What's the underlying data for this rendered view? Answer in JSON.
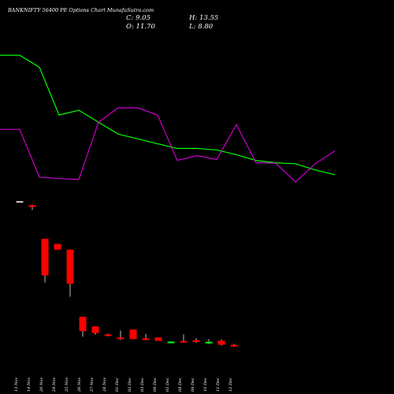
{
  "chart_data": {
    "type": "candlestick",
    "title": "BANKNIFTY 56400  PE Options  Chart MunafaSutra.com",
    "ohlc": {
      "c_label": "C: 9.05",
      "o_label": "O: 11.70",
      "h_label": "H: 13.55",
      "l_label": "L: 8.80"
    },
    "x": [
      "13 Nov",
      "14 Nov",
      "20 Nov",
      "24 Nov",
      "25 Nov",
      "26 Nov",
      "27 Nov",
      "28 Nov",
      "01 Dec",
      "02 Dec",
      "03 Dec",
      "04 Dec",
      "05 Dec",
      "08 Dec",
      "09 Dec",
      "10 Dec",
      "11 Dec",
      "12 Dec"
    ],
    "candles": [
      {
        "o": 261.0,
        "h": 262.0,
        "l": 260.0,
        "c": 261.0,
        "color": "#cccccc"
      },
      {
        "o": 237.0,
        "h": 241.0,
        "l": 212.0,
        "c": 227.0,
        "color": "#ff0000"
      },
      {
        "o": 108.0,
        "h": 108.0,
        "l": 39.0,
        "c": 46.0,
        "color": "#ff0000"
      },
      {
        "o": 96.0,
        "h": 96.0,
        "l": 84.0,
        "c": 84.0,
        "color": "#ff0000"
      },
      {
        "o": 84.0,
        "h": 84.0,
        "l": 28.0,
        "c": 38.0,
        "color": "#ff0000"
      },
      {
        "o": 17.5,
        "h": 17.5,
        "l": 11.0,
        "c": 12.5,
        "color": "#ff0000"
      },
      {
        "o": 14.0,
        "h": 14.0,
        "l": 11.5,
        "c": 12.0,
        "color": "#ff0000"
      },
      {
        "o": 11.6,
        "h": 11.8,
        "l": 11.1,
        "c": 11.3,
        "color": "#ff0000"
      },
      {
        "o": 10.8,
        "h": 12.7,
        "l": 10.2,
        "c": 10.5,
        "color": "#ff0000"
      },
      {
        "o": 13.0,
        "h": 13.0,
        "l": 10.4,
        "c": 10.4,
        "color": "#ff0000"
      },
      {
        "o": 10.6,
        "h": 11.7,
        "l": 10.1,
        "c": 10.2,
        "color": "#ff0000"
      },
      {
        "o": 10.8,
        "h": 10.8,
        "l": 10.0,
        "c": 10.0,
        "color": "#ff0000"
      },
      {
        "o": 9.8,
        "h": 9.9,
        "l": 9.7,
        "c": 9.8,
        "color": "#00ff00"
      },
      {
        "o": 9.9,
        "h": 11.6,
        "l": 9.6,
        "c": 9.95,
        "color": "#ff0000"
      },
      {
        "o": 10.1,
        "h": 10.6,
        "l": 9.5,
        "c": 9.7,
        "color": "#ff0000"
      },
      {
        "o": 9.65,
        "h": 10.4,
        "l": 9.25,
        "c": 9.75,
        "color": "#00ff00"
      },
      {
        "o": 10.0,
        "h": 10.3,
        "l": 8.95,
        "c": 9.1,
        "color": "#ff0000"
      },
      {
        "o": 9.1,
        "h": 9.3,
        "l": 8.7,
        "c": 8.8,
        "color": "#ff0000"
      }
    ],
    "series": [
      {
        "color": "#00ff00",
        "values": [
          240,
          240,
          215,
          115,
          125,
          100,
          75,
          65,
          55,
          45,
          45,
          42,
          32,
          20,
          15,
          13,
          0,
          -10
        ]
      },
      {
        "color": "#cc00cc",
        "values": [
          85,
          85,
          -15,
          -18,
          -20,
          100,
          130,
          130,
          115,
          20,
          30,
          22,
          95,
          15,
          14,
          -25,
          13,
          40
        ]
      }
    ],
    "yrange": [
      -40,
      260
    ]
  }
}
